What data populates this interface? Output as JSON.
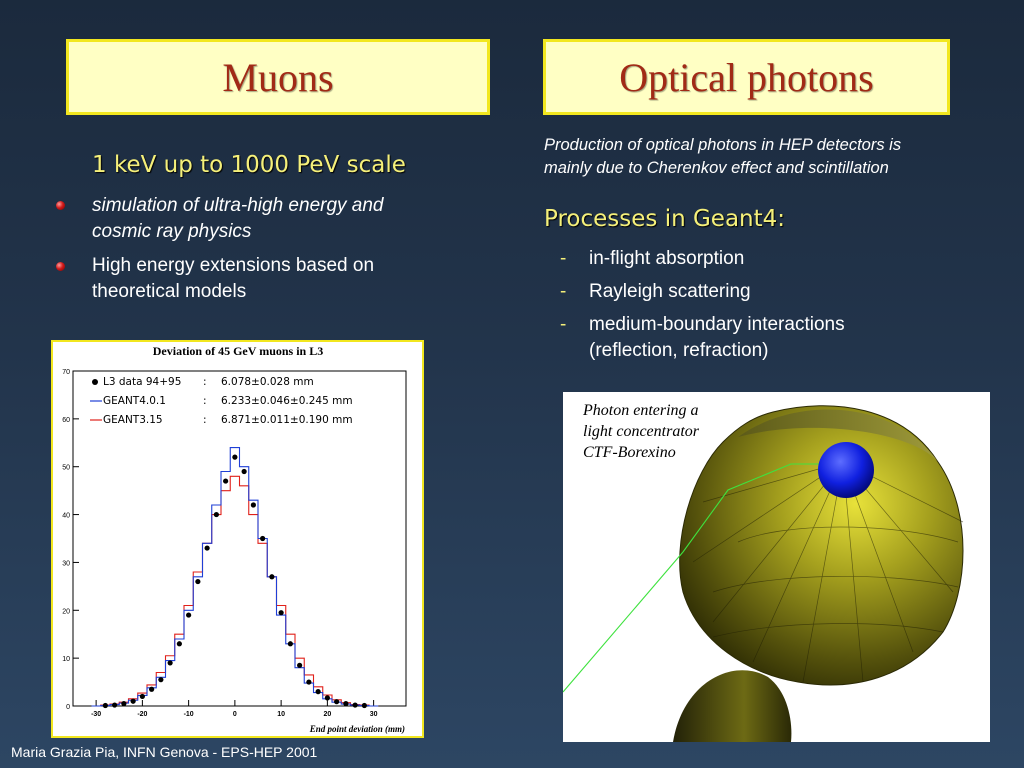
{
  "titles": {
    "left": "Muons",
    "right": "Optical photons"
  },
  "left": {
    "heading": "1 keV up to 1000 PeV scale",
    "bullets": [
      {
        "line1": "simulation of ultra-high energy and",
        "line2": "cosmic ray physics"
      },
      {
        "line1": "High energy extensions based on",
        "line2": "theoretical models"
      }
    ]
  },
  "right": {
    "intro_line1": "Production of optical photons in HEP detectors is",
    "intro_line2": "mainly due to Cherenkov effect and scintillation",
    "processes_heading": "Processes in Geant4:",
    "items": [
      {
        "dash": "-",
        "line1": "in-flight absorption",
        "line2": ""
      },
      {
        "dash": "-",
        "line1": "Rayleigh scattering",
        "line2": ""
      },
      {
        "dash": "-",
        "line1": "medium-boundary interactions",
        "line2": "(reflection, refraction)"
      }
    ]
  },
  "photo": {
    "caption_line1": "Photon entering a",
    "caption_line2": "light concentrator",
    "caption_line3": "CTF-Borexino"
  },
  "footer": "Maria Grazia Pia, INFN Genova - EPS-HEP 2001",
  "colors": {
    "title_text": "#a12a16",
    "title_box": "#ffffc4",
    "heading_yellow": "#f5f07a",
    "geant4_series": "#1f3fd6",
    "geant3_series": "#e0201a",
    "data_points": "#000000"
  },
  "chart_data": {
    "type": "line",
    "title": "Deviation of 45 GeV muons in L3",
    "xlabel": "End point deviation (mm)",
    "ylabel": "",
    "xlim": [
      -35,
      37
    ],
    "ylim": [
      0,
      70
    ],
    "xticks": [
      -30,
      -20,
      -10,
      0,
      10,
      20,
      30
    ],
    "yticks": [
      0,
      10,
      20,
      30,
      40,
      50,
      60,
      70
    ],
    "legend": [
      {
        "name": "L3 data 94+95",
        "colon": ":",
        "value": "6.078±0.028 mm",
        "style": "points"
      },
      {
        "name": "GEANT4.0.1",
        "colon": ":",
        "value": "6.233±0.046±0.245 mm",
        "style": "blue-line"
      },
      {
        "name": "GEANT3.15",
        "colon": ":",
        "value": "6.871±0.011±0.190 mm",
        "style": "red-line"
      }
    ],
    "x": [
      -30,
      -28,
      -26,
      -24,
      -22,
      -20,
      -18,
      -16,
      -14,
      -12,
      -10,
      -8,
      -6,
      -4,
      -2,
      0,
      2,
      4,
      6,
      8,
      10,
      12,
      14,
      16,
      18,
      20,
      22,
      24,
      26,
      28,
      30
    ],
    "series": [
      {
        "name": "L3 data 94+95",
        "values": [
          0,
          0.1,
          0.2,
          0.5,
          1,
          2,
          3.5,
          5.5,
          9,
          13,
          19,
          26,
          33,
          40,
          47,
          52,
          49,
          42,
          35,
          27,
          19.5,
          13,
          8.5,
          5,
          3,
          1.7,
          0.9,
          0.5,
          0.2,
          0.1,
          0
        ]
      },
      {
        "name": "GEANT4.0.1",
        "values": [
          0,
          0.1,
          0.3,
          0.6,
          1.2,
          2.2,
          3.8,
          6,
          9.5,
          14,
          20,
          27,
          34,
          42,
          49,
          54,
          50,
          43,
          35,
          27,
          19,
          13,
          8,
          4.8,
          2.8,
          1.5,
          0.8,
          0.4,
          0.2,
          0.1,
          0
        ]
      },
      {
        "name": "GEANT3.15",
        "values": [
          0,
          0.2,
          0.4,
          0.8,
          1.5,
          2.7,
          4.4,
          7,
          10.5,
          15,
          21,
          28,
          34,
          40,
          45,
          48,
          46,
          40,
          34,
          27,
          21,
          15,
          10,
          6.5,
          4,
          2.3,
          1.3,
          0.7,
          0.3,
          0.2,
          0
        ]
      }
    ]
  }
}
